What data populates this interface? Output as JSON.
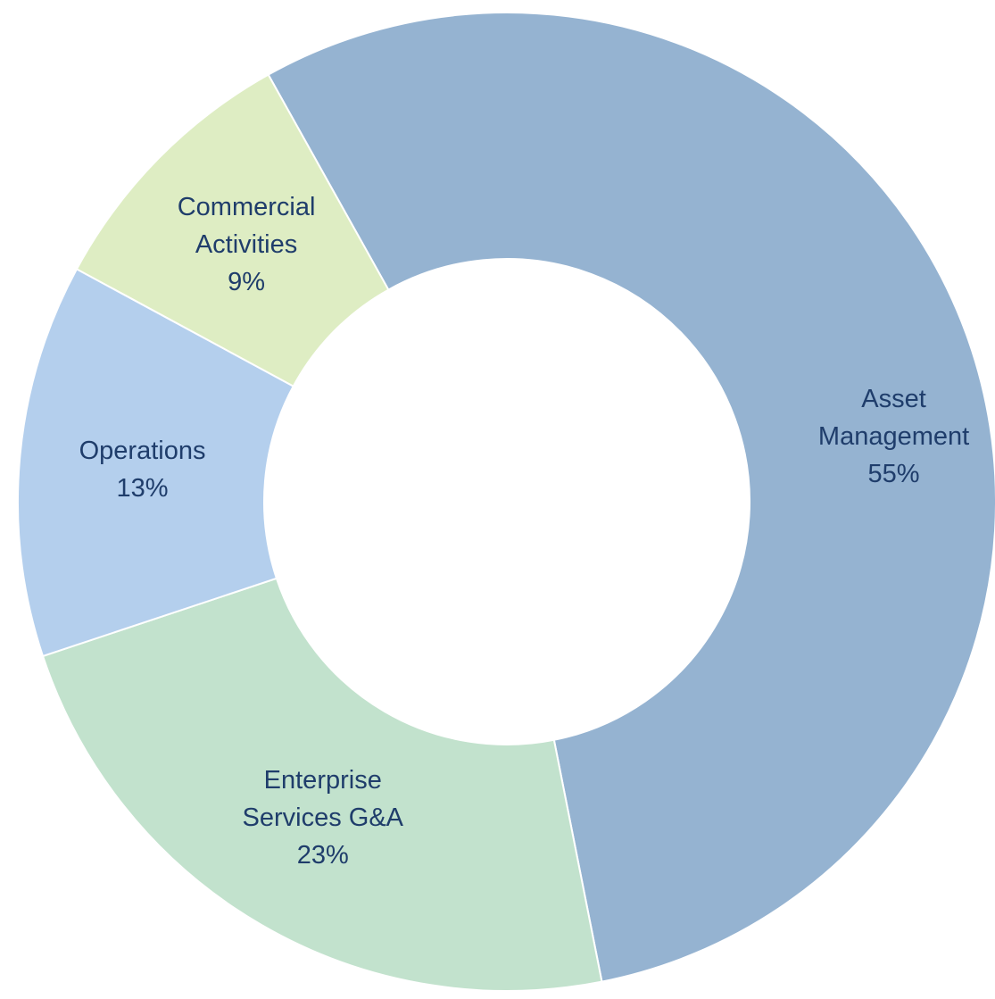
{
  "chart_data": {
    "type": "donut",
    "categories": [
      "Asset Management",
      "Enterprise Services G&A",
      "Operations",
      "Commercial Activities"
    ],
    "values": [
      55,
      23,
      13,
      9
    ],
    "value_labels": [
      "55%",
      "23%",
      "13%",
      "9%"
    ],
    "colors": [
      "#95b3d1",
      "#c2e2cd",
      "#b4cfed",
      "#deedc3"
    ]
  }
}
